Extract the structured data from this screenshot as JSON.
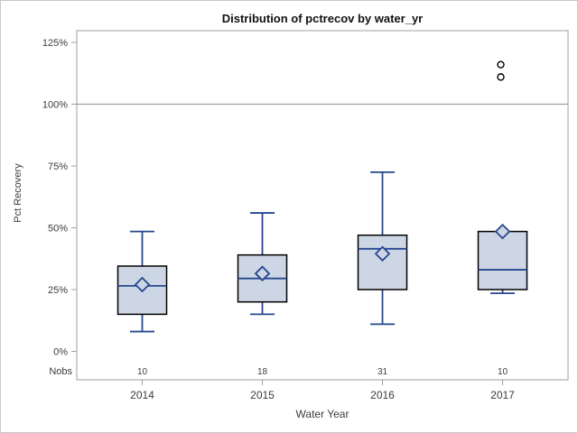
{
  "chart_data": {
    "type": "box",
    "title": "Distribution of pctrecov by water_yr",
    "xlabel": "Water Year",
    "ylabel": "Pct Recovery",
    "categories": [
      "2014",
      "2015",
      "2016",
      "2017"
    ],
    "nobs_label": "Nobs",
    "nobs": [
      "10",
      "18",
      "31",
      "10"
    ],
    "y_ticks": [
      {
        "value": 0,
        "label": "0%"
      },
      {
        "value": 25,
        "label": "25%"
      },
      {
        "value": 50,
        "label": "50%"
      },
      {
        "value": 75,
        "label": "75%"
      },
      {
        "value": 100,
        "label": "100%"
      },
      {
        "value": 125,
        "label": "125%"
      }
    ],
    "ylim": [
      -11.5,
      129.75
    ],
    "reference_line": 100,
    "grid": false,
    "legend": "none",
    "series": [
      {
        "category": "2014",
        "nobs": 10,
        "min": 8,
        "q1": 15,
        "median": 26.5,
        "q3": 34.5,
        "max": 48.5,
        "mean": 27,
        "outliers": []
      },
      {
        "category": "2015",
        "nobs": 18,
        "min": 15,
        "q1": 20,
        "median": 29.5,
        "q3": 39,
        "max": 56,
        "mean": 31.5,
        "outliers": []
      },
      {
        "category": "2016",
        "nobs": 31,
        "min": 11,
        "q1": 25,
        "median": 41.5,
        "q3": 47,
        "max": 72.5,
        "mean": 39.5,
        "outliers": []
      },
      {
        "category": "2017",
        "nobs": 10,
        "min": 23.5,
        "q1": 25,
        "median": 33,
        "q3": 48.5,
        "max": 48.5,
        "mean": 48.5,
        "outliers": [
          111,
          116
        ]
      }
    ],
    "colors": {
      "box_fill": "#cdd6e4",
      "box_border": "#000000",
      "line_blue": "#26478f",
      "frame_gray": "#9aa0a6",
      "axis_text": "#3c3c3c",
      "outlier_stroke": "#000000",
      "background": "#ffffff"
    }
  }
}
